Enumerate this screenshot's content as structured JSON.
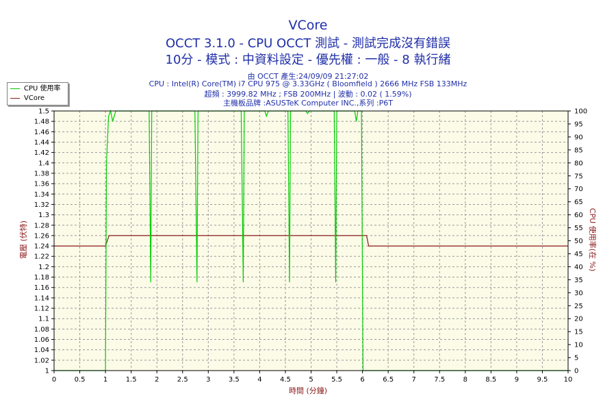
{
  "header": {
    "title": "VCore",
    "subtitle1": "OCCT 3.1.0 - CPU OCCT 測試 - 測試完成沒有錯誤",
    "subtitle2": "10分 - 模式 : 中資料設定 - 優先權 : 一般 - 8 執行緒",
    "info1": "由 OCCT 產生:24/09/09 21:27:02",
    "info2": "CPU : Intel(R) Core(TM) i7 CPU 975 @ 3.33GHz ( Bloomfield ) 2666 MHz FSB 133MHz",
    "info3": "超頻 : 3999.82 MHz ; FSB 200MHz | 波動 : 0.02 ( 1.59%)",
    "info4": "主機板品牌 :ASUSTeK Computer INC.,系列 :P6T"
  },
  "legend": {
    "items": [
      {
        "label": "CPU 使用率",
        "color": "#00cc00"
      },
      {
        "label": "VCore",
        "color": "#8b1a1a"
      }
    ]
  },
  "chart_data": {
    "type": "line",
    "title": "VCore",
    "xlabel": "時間 (分鐘)",
    "ylabel": "電壓 (伏特)",
    "y2label": "CPU 使用率(在 %)",
    "xlim": [
      0,
      10
    ],
    "ylim": [
      1.0,
      1.5
    ],
    "y2lim": [
      0,
      100
    ],
    "x_ticks": [
      "0",
      "0.5",
      "1",
      "1.5",
      "2",
      "2.5",
      "3",
      "3.5",
      "4",
      "4.5",
      "5",
      "5.5",
      "6",
      "6.5",
      "7",
      "7.5",
      "8",
      "8.5",
      "9",
      "9.5",
      "10"
    ],
    "y_ticks": [
      "1",
      "1.02",
      "1.04",
      "1.06",
      "1.08",
      "1.1",
      "1.12",
      "1.14",
      "1.16",
      "1.18",
      "1.2",
      "1.22",
      "1.24",
      "1.26",
      "1.28",
      "1.3",
      "1.32",
      "1.34",
      "1.36",
      "1.38",
      "1.4",
      "1.42",
      "1.44",
      "1.46",
      "1.48",
      "1.5"
    ],
    "y2_ticks": [
      "0",
      "5",
      "10",
      "15",
      "20",
      "25",
      "30",
      "35",
      "40",
      "45",
      "50",
      "55",
      "60",
      "65",
      "70",
      "75",
      "80",
      "85",
      "90",
      "95",
      "100"
    ],
    "grid": true,
    "legend_position": "top-left",
    "background": "#fbfbe8",
    "series": [
      {
        "name": "VCore",
        "axis": "left",
        "color": "#8b1a1a",
        "points": [
          [
            0,
            1.24
          ],
          [
            1.0,
            1.24
          ],
          [
            1.07,
            1.26
          ],
          [
            6.0,
            1.26
          ],
          [
            6.08,
            1.26
          ],
          [
            6.12,
            1.24
          ],
          [
            10,
            1.24
          ]
        ]
      },
      {
        "name": "CPU 使用率",
        "axis": "right",
        "color": "#00cc00",
        "points": [
          [
            0,
            0
          ],
          [
            1.0,
            0
          ],
          [
            1.02,
            80
          ],
          [
            1.06,
            98
          ],
          [
            1.1,
            100
          ],
          [
            1.14,
            96
          ],
          [
            1.2,
            100
          ],
          [
            1.85,
            100
          ],
          [
            1.88,
            34
          ],
          [
            1.9,
            100
          ],
          [
            2.74,
            100
          ],
          [
            2.78,
            34
          ],
          [
            2.8,
            100
          ],
          [
            3.64,
            100
          ],
          [
            3.68,
            34
          ],
          [
            3.7,
            100
          ],
          [
            4.1,
            100
          ],
          [
            4.13,
            98
          ],
          [
            4.17,
            100
          ],
          [
            4.55,
            100
          ],
          [
            4.58,
            34
          ],
          [
            4.6,
            100
          ],
          [
            4.9,
            100
          ],
          [
            4.93,
            99
          ],
          [
            4.97,
            100
          ],
          [
            5.45,
            100
          ],
          [
            5.48,
            34
          ],
          [
            5.5,
            100
          ],
          [
            5.85,
            100
          ],
          [
            5.88,
            96
          ],
          [
            5.91,
            100
          ],
          [
            5.98,
            100
          ],
          [
            6.01,
            0
          ],
          [
            10,
            0
          ]
        ]
      }
    ]
  }
}
